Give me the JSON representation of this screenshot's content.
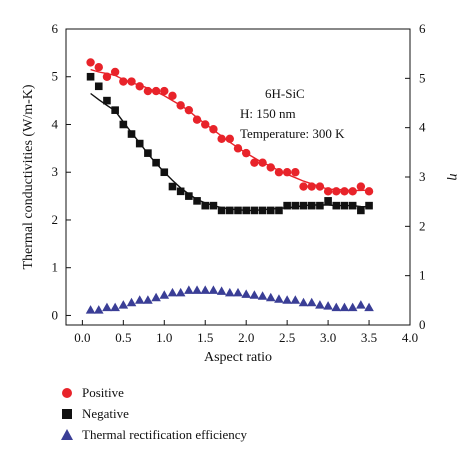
{
  "chart_data": {
    "type": "scatter",
    "xlabel": "Aspect ratio",
    "ylabel": "Thermal conductivities (W/m-K)",
    "y2label": "η",
    "xlim": [
      -0.2,
      4.0
    ],
    "ylim": [
      -0.2,
      6.0
    ],
    "y2lim": [
      0,
      6
    ],
    "xticks": [
      "0.0",
      "0.5",
      "1.0",
      "1.5",
      "2.0",
      "2.5",
      "3.0",
      "3.5",
      "4.0"
    ],
    "yticks": [
      "0",
      "1",
      "2",
      "3",
      "4",
      "5",
      "6"
    ],
    "y2ticks": [
      "0",
      "1",
      "2",
      "3",
      "4",
      "5",
      "6"
    ],
    "annotations": [
      "6H-SiC",
      "H: 150 nm",
      "Temperature: 300 K"
    ],
    "legend_position": "below",
    "series": [
      {
        "name": "Positive",
        "marker": "circle",
        "color": "#e8232a",
        "axis": "left",
        "x": [
          0.1,
          0.2,
          0.3,
          0.4,
          0.5,
          0.6,
          0.7,
          0.8,
          0.9,
          1.0,
          1.1,
          1.2,
          1.3,
          1.4,
          1.5,
          1.6,
          1.7,
          1.8,
          1.9,
          2.0,
          2.1,
          2.2,
          2.3,
          2.4,
          2.5,
          2.6,
          2.7,
          2.8,
          2.9,
          3.0,
          3.1,
          3.2,
          3.3,
          3.4,
          3.5
        ],
        "y": [
          5.3,
          5.2,
          5.0,
          5.1,
          4.9,
          4.9,
          4.8,
          4.7,
          4.7,
          4.7,
          4.6,
          4.4,
          4.3,
          4.1,
          4.0,
          3.9,
          3.7,
          3.7,
          3.5,
          3.4,
          3.2,
          3.2,
          3.1,
          3.0,
          3.0,
          3.0,
          2.7,
          2.7,
          2.7,
          2.6,
          2.6,
          2.6,
          2.6,
          2.7,
          2.6
        ]
      },
      {
        "name": "Negative",
        "marker": "square",
        "color": "#111111",
        "axis": "left",
        "x": [
          0.1,
          0.2,
          0.3,
          0.4,
          0.5,
          0.6,
          0.7,
          0.8,
          0.9,
          1.0,
          1.1,
          1.2,
          1.3,
          1.4,
          1.5,
          1.6,
          1.7,
          1.8,
          1.9,
          2.0,
          2.1,
          2.2,
          2.3,
          2.4,
          2.5,
          2.6,
          2.7,
          2.8,
          2.9,
          3.0,
          3.1,
          3.2,
          3.3,
          3.4,
          3.5
        ],
        "y": [
          5.0,
          4.8,
          4.5,
          4.3,
          4.0,
          3.8,
          3.6,
          3.4,
          3.2,
          3.0,
          2.7,
          2.6,
          2.5,
          2.4,
          2.3,
          2.3,
          2.2,
          2.2,
          2.2,
          2.2,
          2.2,
          2.2,
          2.2,
          2.2,
          2.3,
          2.3,
          2.3,
          2.3,
          2.3,
          2.4,
          2.3,
          2.3,
          2.3,
          2.2,
          2.3
        ]
      },
      {
        "name": "Thermal rectification efficiency",
        "marker": "triangle",
        "color": "#3a3e96",
        "axis": "right",
        "x": [
          0.1,
          0.2,
          0.3,
          0.4,
          0.5,
          0.6,
          0.7,
          0.8,
          0.9,
          1.0,
          1.1,
          1.2,
          1.3,
          1.4,
          1.5,
          1.6,
          1.7,
          1.8,
          1.9,
          2.0,
          2.1,
          2.2,
          2.3,
          2.4,
          2.5,
          2.6,
          2.7,
          2.8,
          2.9,
          3.0,
          3.1,
          3.2,
          3.3,
          3.4,
          3.5
        ],
        "y": [
          0.3,
          0.3,
          0.35,
          0.35,
          0.4,
          0.45,
          0.5,
          0.5,
          0.55,
          0.6,
          0.65,
          0.65,
          0.7,
          0.7,
          0.7,
          0.7,
          0.68,
          0.65,
          0.65,
          0.62,
          0.6,
          0.58,
          0.55,
          0.52,
          0.5,
          0.5,
          0.45,
          0.45,
          0.4,
          0.38,
          0.35,
          0.35,
          0.35,
          0.4,
          0.35
        ]
      }
    ]
  }
}
